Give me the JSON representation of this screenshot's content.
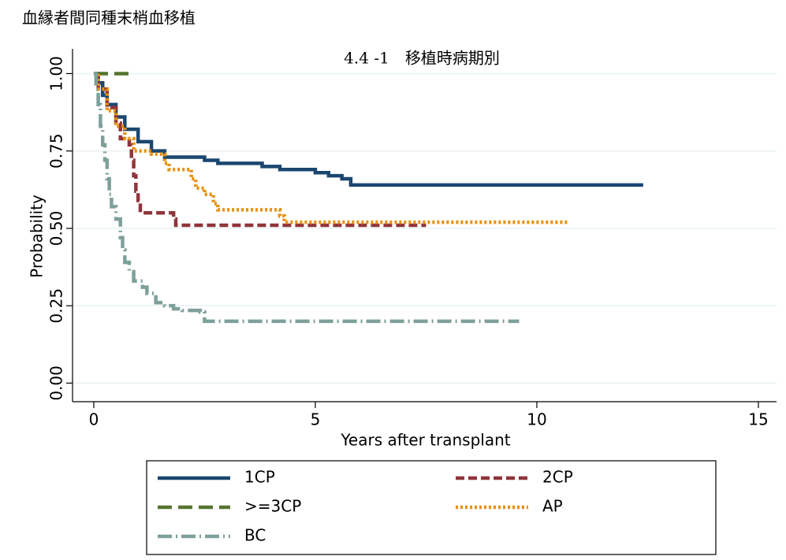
{
  "chart_data": {
    "type": "step",
    "header": "血縁者間同種末梢血移植",
    "title": "4.4 -1　移植時病期別",
    "x_label": "Years after transplant",
    "y_label": "Probability",
    "xlim": [
      -0.48,
      15.41
    ],
    "xticks": [
      0,
      5,
      10,
      15
    ],
    "ylim": [
      -0.06,
      1.08
    ],
    "yticks": [
      {
        "value": 0,
        "label": "0.00"
      },
      {
        "value": 0.25,
        "label": "0.25"
      },
      {
        "value": 0.5,
        "label": "0.50"
      },
      {
        "value": 0.75,
        "label": "0.75"
      },
      {
        "value": 1,
        "label": "1.00"
      }
    ],
    "grid": true,
    "legend": "bottom",
    "series": [
      {
        "name": "1CP",
        "color": "#1a476f",
        "dash": "none",
        "x": [
          0,
          0.1,
          0.2,
          0.3,
          0.5,
          0.7,
          1.0,
          1.3,
          1.6,
          2.5,
          2.8,
          3.8,
          4.2,
          5.0,
          5.3,
          5.6,
          5.8,
          12.4
        ],
        "values": [
          1,
          0.97,
          0.93,
          0.9,
          0.86,
          0.82,
          0.78,
          0.75,
          0.73,
          0.72,
          0.71,
          0.7,
          0.69,
          0.68,
          0.67,
          0.66,
          0.64,
          0.64
        ]
      },
      {
        "name": "2CP",
        "color": "#90353b",
        "dash": "11,5",
        "x": [
          0,
          0.1,
          0.3,
          0.5,
          0.6,
          0.8,
          0.85,
          0.9,
          0.95,
          1.0,
          1.05,
          1.8,
          1.85,
          7.5
        ],
        "values": [
          1,
          0.95,
          0.89,
          0.84,
          0.79,
          0.77,
          0.72,
          0.67,
          0.62,
          0.59,
          0.55,
          0.53,
          0.51,
          0.51
        ]
      },
      {
        "name": ">=3CP",
        "color": "#55752f",
        "dash": "18,8",
        "x": [
          0,
          0.8
        ],
        "values": [
          1,
          1
        ]
      },
      {
        "name": "AP",
        "color": "#e8900e",
        "dash": "3,3",
        "x": [
          0,
          0.1,
          0.3,
          0.5,
          0.7,
          0.9,
          1.3,
          1.6,
          1.7,
          2.2,
          2.3,
          2.5,
          2.7,
          2.8,
          4.2,
          4.3,
          10.7
        ],
        "values": [
          1,
          0.95,
          0.88,
          0.83,
          0.79,
          0.75,
          0.74,
          0.71,
          0.69,
          0.66,
          0.63,
          0.61,
          0.58,
          0.56,
          0.54,
          0.52,
          0.52
        ]
      },
      {
        "name": "BC",
        "color": "#7ea09a",
        "dash": "18,5,2,5",
        "x": [
          0,
          0.05,
          0.1,
          0.15,
          0.2,
          0.25,
          0.3,
          0.35,
          0.4,
          0.5,
          0.6,
          0.65,
          0.7,
          0.8,
          0.9,
          1.1,
          1.2,
          1.4,
          1.6,
          1.8,
          2.0,
          2.4,
          2.5,
          9.6
        ],
        "values": [
          1,
          0.95,
          0.9,
          0.83,
          0.77,
          0.72,
          0.66,
          0.61,
          0.57,
          0.53,
          0.47,
          0.43,
          0.39,
          0.36,
          0.33,
          0.31,
          0.29,
          0.26,
          0.25,
          0.24,
          0.235,
          0.23,
          0.2,
          0.2
        ]
      }
    ]
  }
}
